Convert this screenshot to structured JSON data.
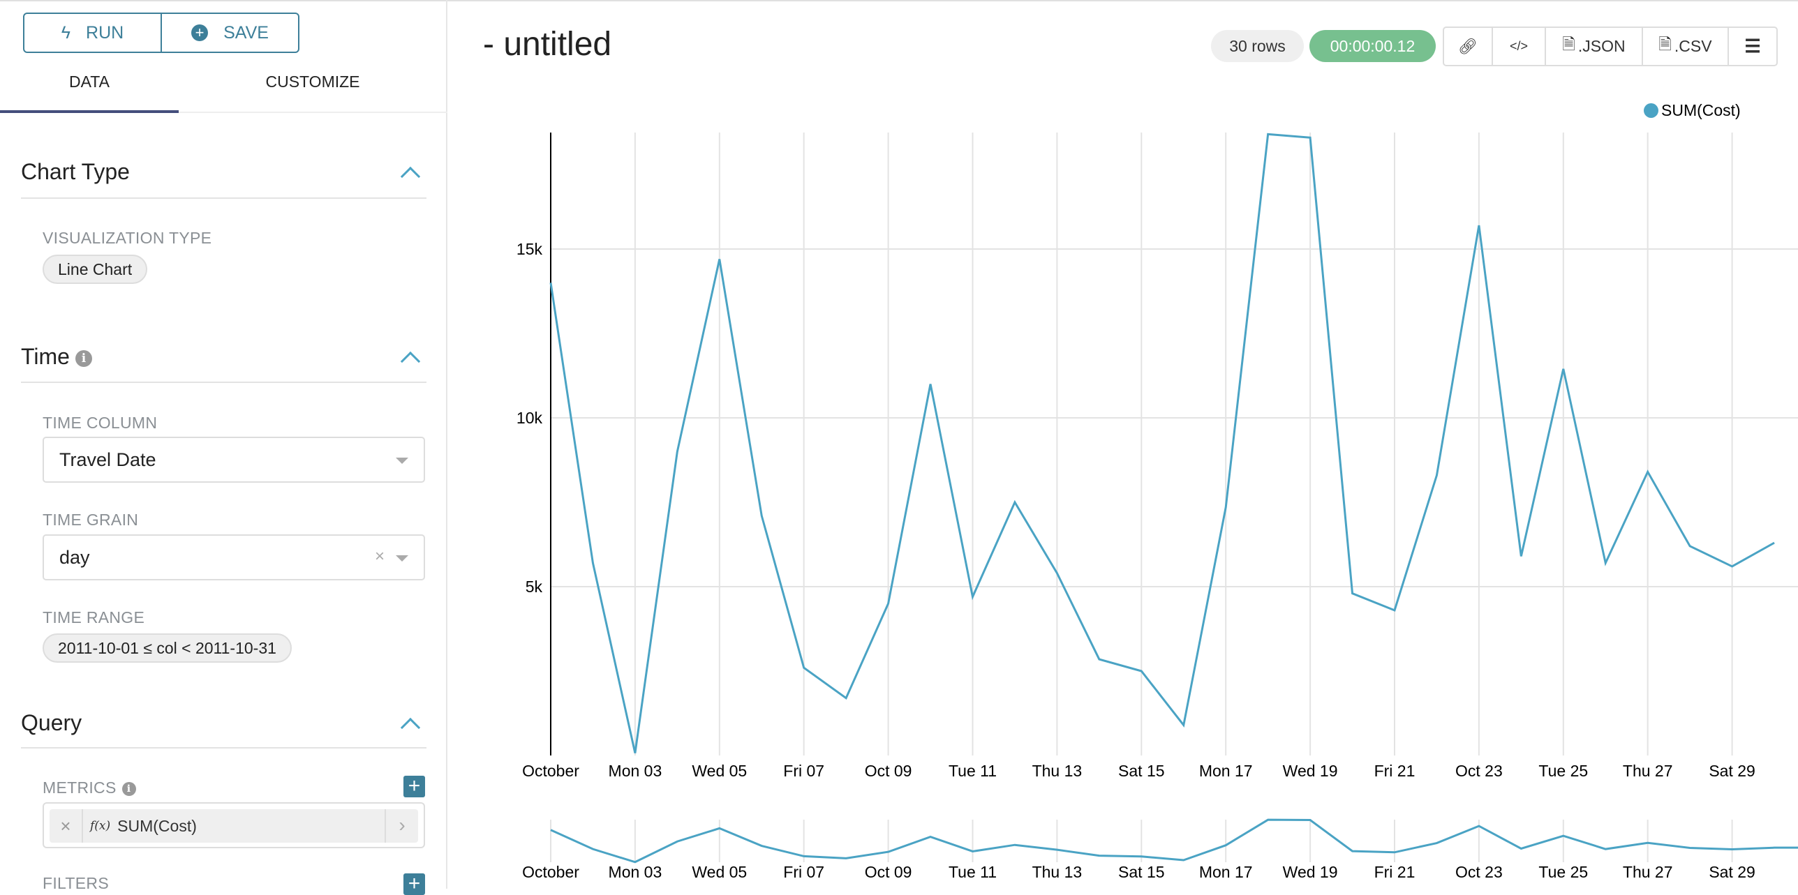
{
  "sidebar": {
    "run_label": "RUN",
    "save_label": "SAVE",
    "tabs": [
      {
        "label": "DATA",
        "active": true
      },
      {
        "label": "CUSTOMIZE",
        "active": false
      }
    ],
    "chart_type": {
      "title": "Chart Type",
      "viz_label": "VISUALIZATION TYPE",
      "viz_value": "Line Chart"
    },
    "time": {
      "title": "Time",
      "column_label": "TIME COLUMN",
      "column_value": "Travel Date",
      "grain_label": "TIME GRAIN",
      "grain_value": "day",
      "range_label": "TIME RANGE",
      "range_value": "2011-10-01 ≤ col < 2011-10-31"
    },
    "query": {
      "title": "Query",
      "metrics_label": "METRICS",
      "metric_fx": "f(x)",
      "metric_value": "SUM(Cost)",
      "filters_label": "FILTERS"
    }
  },
  "header": {
    "title": "- untitled",
    "rows": "30 rows",
    "timer": "00:00:00.12",
    "json_label": ".JSON",
    "csv_label": ".CSV"
  },
  "colors": {
    "accent": "#3d7f99",
    "series": "#4aa3c4",
    "timer_bg": "#77c08f"
  },
  "chart_data": {
    "type": "line",
    "x": [
      "2011-10-01",
      "2011-10-02",
      "2011-10-03",
      "2011-10-04",
      "2011-10-05",
      "2011-10-06",
      "2011-10-07",
      "2011-10-08",
      "2011-10-09",
      "2011-10-10",
      "2011-10-11",
      "2011-10-12",
      "2011-10-13",
      "2011-10-14",
      "2011-10-15",
      "2011-10-16",
      "2011-10-17",
      "2011-10-18",
      "2011-10-19",
      "2011-10-20",
      "2011-10-21",
      "2011-10-22",
      "2011-10-23",
      "2011-10-24",
      "2011-10-25",
      "2011-10-26",
      "2011-10-27",
      "2011-10-28",
      "2011-10-29",
      "2011-10-30"
    ],
    "series": [
      {
        "name": "SUM(Cost)",
        "values": [
          14000,
          5700,
          70,
          9000,
          14700,
          7100,
          2600,
          1700,
          4500,
          11000,
          4700,
          7500,
          5400,
          2850,
          2500,
          900,
          7350,
          18400,
          18300,
          4800,
          4300,
          8300,
          15700,
          5900,
          11450,
          5700,
          8400,
          6200,
          5600,
          6300
        ]
      }
    ],
    "xtick_labels": [
      "October",
      "Mon 03",
      "Wed 05",
      "Fri 07",
      "Oct 09",
      "Tue 11",
      "Thu 13",
      "Sat 15",
      "Mon 17",
      "Wed 19",
      "Fri 21",
      "Oct 23",
      "Tue 25",
      "Thu 27",
      "Sat 29"
    ],
    "yticks": [
      {
        "value": 5000,
        "label": "5k"
      },
      {
        "value": 10000,
        "label": "10k"
      },
      {
        "value": 15000,
        "label": "15k"
      }
    ],
    "ylim": [
      0,
      18450
    ],
    "grid": true,
    "legend": "top-right",
    "brush_preview": true
  }
}
